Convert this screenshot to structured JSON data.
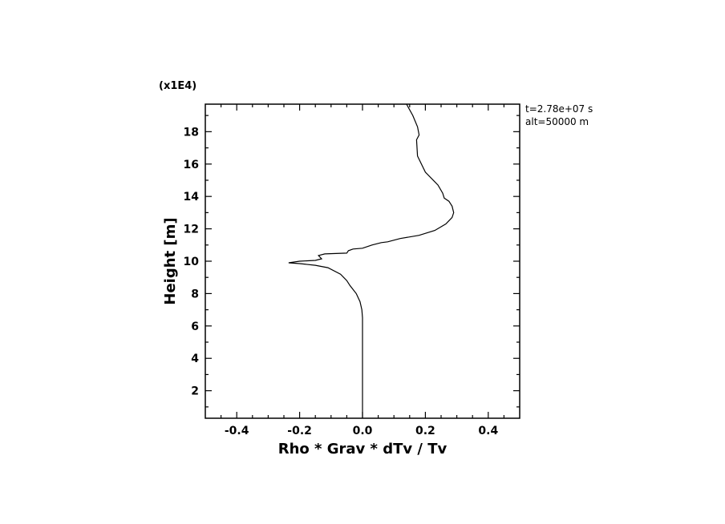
{
  "chart_data": {
    "type": "line",
    "title": "",
    "xlabel": "Rho * Grav * dTv / Tv",
    "ylabel": "Height [m]",
    "y_scale_label": "(x1E4)",
    "xlim": [
      -0.5,
      0.5
    ],
    "ylim": [
      0.3,
      19.7
    ],
    "x_ticks": [
      "-0.4",
      "-0.2",
      "0.0",
      "0.2",
      "0.4"
    ],
    "x_tick_values": [
      -0.4,
      -0.2,
      0.0,
      0.2,
      0.4
    ],
    "y_ticks": [
      "2",
      "4",
      "6",
      "8",
      "10",
      "12",
      "14",
      "16",
      "18"
    ],
    "y_tick_values": [
      2,
      4,
      6,
      8,
      10,
      12,
      14,
      16,
      18
    ],
    "grid": false,
    "annotations": [
      "t=2.78e+07 s",
      "alt=50000 m"
    ],
    "series": [
      {
        "x": [
          0.0,
          0.0,
          0.0,
          -0.002,
          -0.008,
          -0.02,
          -0.04,
          -0.05,
          -0.07,
          -0.11,
          -0.15,
          -0.2,
          -0.235,
          -0.2,
          -0.15,
          -0.13,
          -0.14,
          -0.12,
          -0.05,
          -0.045,
          -0.03,
          0.0,
          0.03,
          0.06,
          0.08,
          0.12,
          0.18,
          0.23,
          0.265,
          0.285,
          0.29,
          0.285,
          0.275,
          0.26,
          0.255,
          0.24,
          0.2,
          0.175,
          0.172,
          0.18,
          0.175,
          0.16,
          0.14
        ],
        "y": [
          0.3,
          3.0,
          6.5,
          7.0,
          7.5,
          8.0,
          8.5,
          8.8,
          9.2,
          9.6,
          9.75,
          9.85,
          9.9,
          10.0,
          10.05,
          10.15,
          10.35,
          10.45,
          10.5,
          10.65,
          10.75,
          10.8,
          11.0,
          11.15,
          11.2,
          11.4,
          11.6,
          11.9,
          12.3,
          12.7,
          13.0,
          13.4,
          13.7,
          13.9,
          14.2,
          14.7,
          15.5,
          16.5,
          17.5,
          17.8,
          18.3,
          19.0,
          19.7
        ]
      }
    ]
  }
}
